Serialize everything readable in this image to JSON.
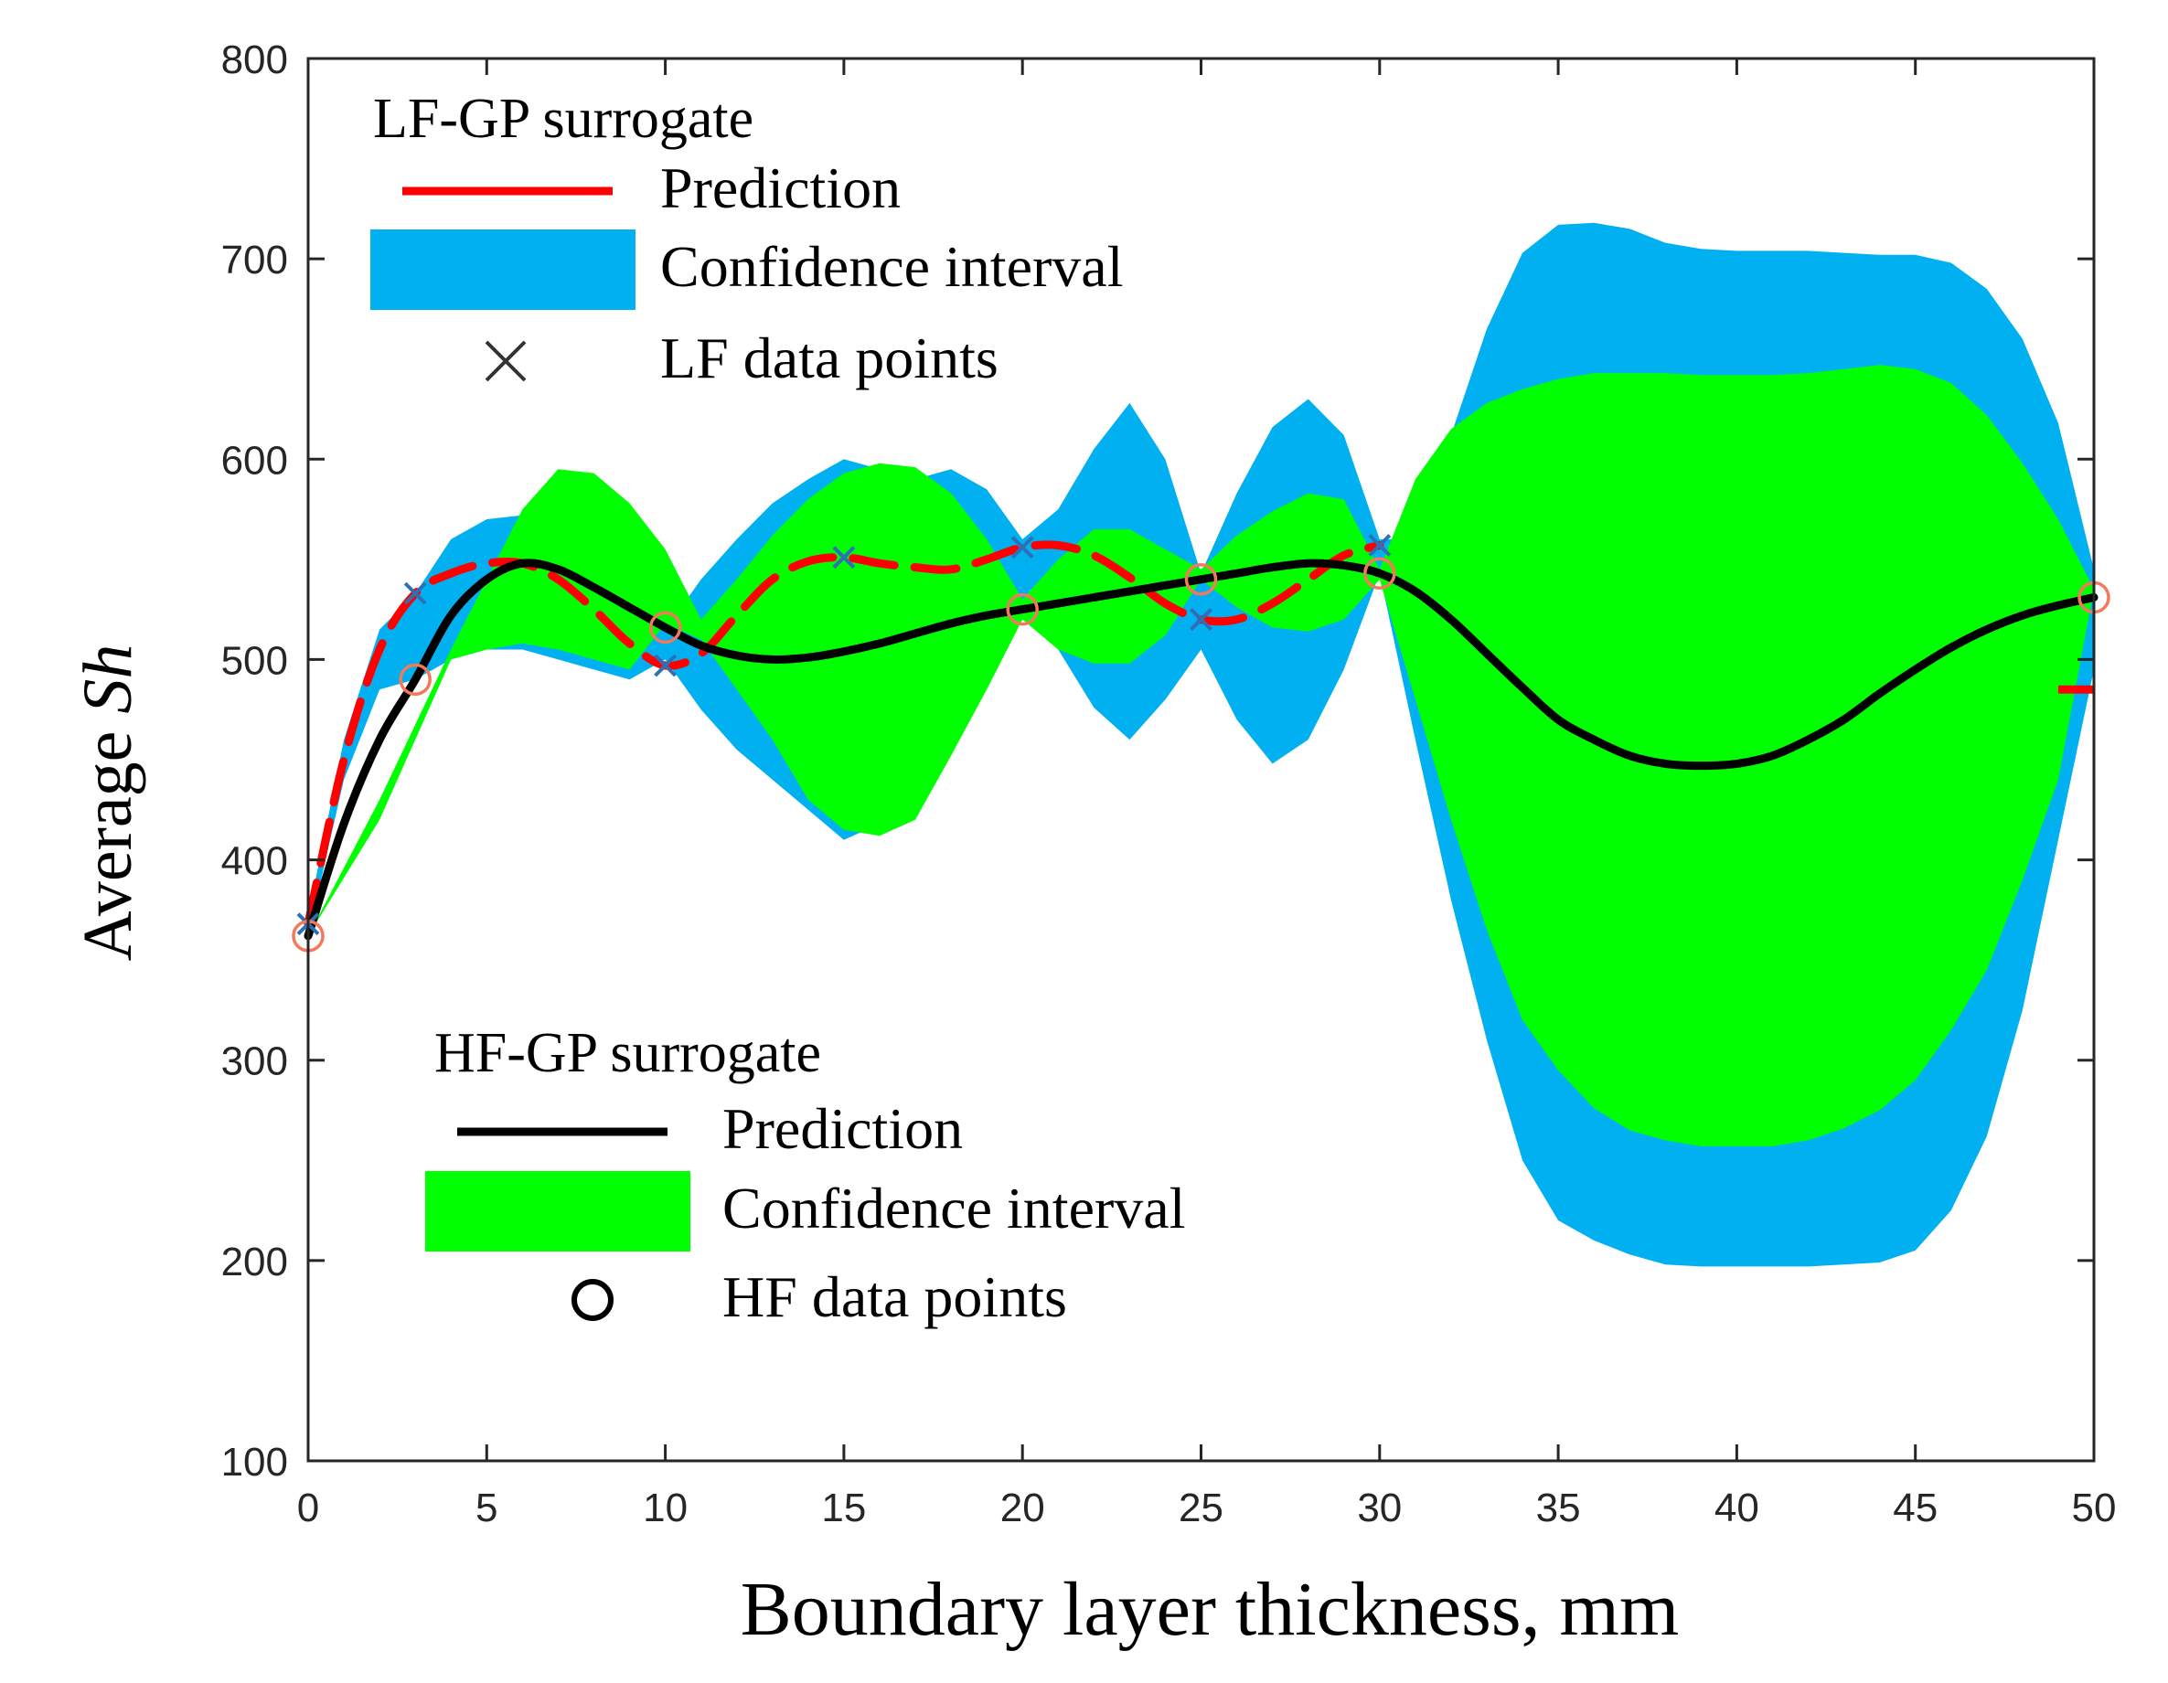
{
  "chart_data": {
    "type": "line",
    "title": "",
    "xlabel": "Boundary layer thickness, mm",
    "ylabel_prefix": "Average ",
    "ylabel_symbol": "Sh",
    "xlim": [
      0,
      50
    ],
    "ylim": [
      100,
      800
    ],
    "xticks": [
      0,
      5,
      10,
      15,
      20,
      25,
      30,
      35,
      40,
      45,
      50
    ],
    "yticks": [
      100,
      200,
      300,
      400,
      500,
      600,
      700,
      800
    ],
    "xtick_labels": [
      "0",
      "5",
      "10",
      "15",
      "20",
      "25",
      "30",
      "35",
      "40",
      "45",
      "50"
    ],
    "ytick_labels": [
      "100",
      "200",
      "300",
      "400",
      "500",
      "600",
      "700",
      "800"
    ],
    "grid": false,
    "colors": {
      "lf_prediction": "#ff0000",
      "lf_confidence": "#00b0f0",
      "lf_points": "#2e6fb5",
      "hf_prediction": "#000000",
      "hf_confidence": "#00ff00",
      "hf_points": "#f4795b"
    },
    "series": [
      {
        "name": "LF-GP confidence interval",
        "type": "band",
        "x": [
          0,
          1,
          2,
          3,
          4,
          5,
          6,
          7,
          8,
          9,
          10,
          11,
          12,
          13,
          14,
          15,
          16,
          17,
          18,
          19,
          20,
          21,
          22,
          23,
          24,
          25,
          26,
          27,
          28,
          29,
          30,
          31,
          32,
          33,
          34,
          35,
          36,
          37,
          38,
          39,
          40,
          41,
          42,
          43,
          44,
          45,
          46,
          47,
          48,
          49,
          50
        ],
        "upper": [
          372,
          460,
          515,
          533,
          560,
          570,
          572,
          575,
          560,
          535,
          515,
          540,
          560,
          578,
          590,
          600,
          595,
          590,
          595,
          585,
          560,
          575,
          605,
          628,
          600,
          543,
          583,
          616,
          630,
          612,
          560,
          560,
          612,
          665,
          703,
          717,
          718,
          715,
          708,
          705,
          704,
          704,
          704,
          703,
          702,
          702,
          698,
          685,
          660,
          618,
          545
        ],
        "lower": [
          362,
          440,
          485,
          490,
          500,
          505,
          505,
          500,
          495,
          490,
          500,
          475,
          455,
          440,
          425,
          410,
          418,
          440,
          470,
          505,
          525,
          505,
          476,
          460,
          480,
          505,
          470,
          448,
          460,
          495,
          543,
          460,
          380,
          310,
          250,
          220,
          210,
          203,
          198,
          197,
          197,
          197,
          197,
          198,
          199,
          205,
          225,
          262,
          325,
          410,
          495
        ]
      },
      {
        "name": "HF-GP confidence interval",
        "type": "band",
        "x": [
          0,
          2,
          4,
          5,
          6,
          7,
          8,
          9,
          10,
          11,
          12,
          13,
          14,
          15,
          16,
          17,
          18,
          19,
          20,
          21,
          22,
          23,
          24,
          25,
          26,
          27,
          28,
          29,
          30,
          31,
          32,
          33,
          34,
          35,
          36,
          37,
          38,
          39,
          40,
          41,
          42,
          43,
          44,
          45,
          46,
          47,
          48,
          49,
          50
        ],
        "upper": [
          362,
          430,
          505,
          540,
          575,
          595,
          593,
          578,
          555,
          520,
          540,
          562,
          580,
          593,
          598,
          596,
          583,
          560,
          530,
          550,
          565,
          565,
          555,
          545,
          562,
          574,
          583,
          580,
          545,
          590,
          615,
          628,
          635,
          640,
          643,
          643,
          643,
          642,
          642,
          642,
          643,
          645,
          647,
          645,
          638,
          622,
          598,
          570,
          535
        ],
        "lower": [
          362,
          420,
          500,
          505,
          508,
          505,
          500,
          495,
          518,
          510,
          485,
          460,
          430,
          415,
          412,
          420,
          452,
          485,
          520,
          505,
          498,
          498,
          512,
          540,
          526,
          516,
          514,
          520,
          540,
          480,
          420,
          365,
          320,
          295,
          276,
          265,
          260,
          257,
          257,
          257,
          260,
          266,
          275,
          290,
          315,
          345,
          390,
          440,
          535
        ]
      },
      {
        "name": "LF-GP prediction",
        "type": "line",
        "x": [
          0,
          1,
          2,
          3,
          4,
          5,
          6,
          7,
          8,
          9,
          10,
          11,
          12,
          13,
          14,
          15,
          16,
          17,
          18,
          19,
          20,
          21,
          22,
          23,
          24,
          25,
          26,
          27,
          28,
          29,
          30
        ],
        "values": [
          368,
          450,
          505,
          533,
          543,
          548,
          548,
          540,
          525,
          508,
          497,
          503,
          522,
          540,
          549,
          551,
          548,
          546,
          545,
          550,
          556,
          557,
          552,
          541,
          528,
          520,
          520,
          528,
          540,
          552,
          557
        ]
      },
      {
        "name": "LF-GP prediction (segment near 50)",
        "type": "line",
        "x": [
          49,
          50
        ],
        "values": [
          485,
          485
        ]
      },
      {
        "name": "HF-GP prediction",
        "type": "line",
        "x": [
          0,
          1,
          2,
          3,
          4,
          5,
          6,
          7,
          8,
          9,
          10,
          11,
          12,
          13,
          14,
          15,
          16,
          17,
          18,
          19,
          20,
          21,
          22,
          23,
          24,
          25,
          26,
          27,
          28,
          29,
          30,
          31,
          32,
          33,
          34,
          35,
          36,
          37,
          38,
          39,
          40,
          41,
          42,
          43,
          44,
          45,
          46,
          47,
          48,
          49,
          50
        ],
        "values": [
          362,
          418,
          460,
          490,
          522,
          540,
          548,
          545,
          536,
          526,
          516,
          507,
          502,
          500,
          501,
          504,
          508,
          513,
          518,
          522,
          525,
          528,
          531,
          534,
          537,
          540,
          543,
          546,
          548,
          547,
          543,
          534,
          520,
          503,
          486,
          470,
          460,
          452,
          448,
          447,
          448,
          452,
          460,
          470,
          483,
          495,
          506,
          515,
          522,
          527,
          531
        ]
      },
      {
        "name": "LF data points",
        "type": "scatter",
        "marker": "x",
        "x": [
          0,
          3,
          10,
          15,
          20,
          25,
          30
        ],
        "values": [
          368,
          533,
          497,
          551,
          556,
          520,
          557
        ]
      },
      {
        "name": "HF data points",
        "type": "scatter",
        "marker": "o",
        "x": [
          0,
          3,
          10,
          20,
          25,
          30,
          50
        ],
        "values": [
          362,
          490,
          516,
          525,
          540,
          543,
          531
        ]
      }
    ],
    "legends": [
      {
        "position": "top-left",
        "title": "LF-GP surrogate",
        "entries": [
          {
            "label": "Prediction",
            "symbol": "line",
            "color": "#ff0000"
          },
          {
            "label": "Confidence interval",
            "symbol": "patch",
            "color": "#00b0f0"
          },
          {
            "label": "LF data points",
            "symbol": "x",
            "color": "#333333"
          }
        ]
      },
      {
        "position": "bottom-left",
        "title": "HF-GP surrogate",
        "entries": [
          {
            "label": "Prediction",
            "symbol": "line",
            "color": "#000000"
          },
          {
            "label": "Confidence interval",
            "symbol": "patch",
            "color": "#00ff00"
          },
          {
            "label": "HF data points",
            "symbol": "o",
            "color": "#000000"
          }
        ]
      }
    ]
  }
}
